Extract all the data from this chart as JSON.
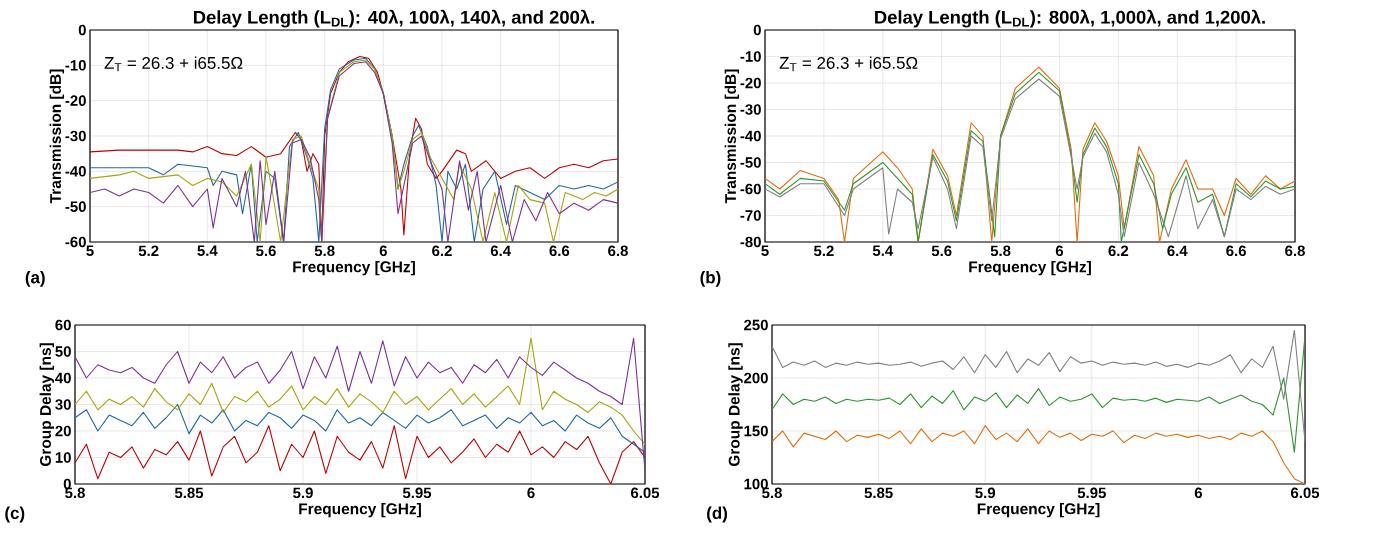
{
  "chart_data": [
    {
      "type": "line",
      "title": "Delay Length (L$_{DL}$): 40λ, 100λ, 140λ, and 200λ.",
      "xlabel": "Frequency [GHz]",
      "ylabel": "Transmission [dB]",
      "annotations": [
        "Z$_{T}$ = 26.3 + i65.5Ω",
        "(a)"
      ],
      "xlim": [
        5,
        6.8
      ],
      "xticks": [
        5,
        5.2,
        5.4,
        5.6,
        5.8,
        6,
        6.2,
        6.4,
        6.6,
        6.8
      ],
      "ylim": [
        -60,
        0
      ],
      "yticks": [
        -60,
        -50,
        -40,
        -30,
        -20,
        -10,
        0
      ],
      "grid": true,
      "series": [
        {
          "color": "#c00000",
          "x": [
            5.0,
            5.1,
            5.2,
            5.3,
            5.35,
            5.4,
            5.45,
            5.5,
            5.55,
            5.6,
            5.65,
            5.7,
            5.72,
            5.74,
            5.76,
            5.78,
            5.79,
            5.8,
            5.82,
            5.85,
            5.88,
            5.92,
            5.95,
            5.98,
            6.0,
            6.03,
            6.06,
            6.07,
            6.09,
            6.11,
            6.13,
            6.15,
            6.18,
            6.2,
            6.25,
            6.28,
            6.3,
            6.35,
            6.4,
            6.45,
            6.5,
            6.55,
            6.6,
            6.65,
            6.7,
            6.75,
            6.8
          ],
          "values": [
            -34.5,
            -34,
            -34,
            -34,
            -34.5,
            -33,
            -35,
            -35.5,
            -33,
            -36,
            -35,
            -29,
            -31,
            -40,
            -35,
            -38,
            -60,
            -30,
            -18,
            -12,
            -9,
            -7.5,
            -8,
            -12,
            -18,
            -30,
            -45,
            -58,
            -35,
            -25,
            -28,
            -38,
            -42,
            -40,
            -34,
            -35,
            -40,
            -37,
            -42,
            -40,
            -39,
            -42,
            -39,
            -38,
            -39,
            -37,
            -36.5
          ]
        },
        {
          "color": "#1f68a4",
          "x": [
            5.0,
            5.1,
            5.2,
            5.25,
            5.3,
            5.4,
            5.42,
            5.45,
            5.5,
            5.52,
            5.55,
            5.57,
            5.6,
            5.63,
            5.66,
            5.68,
            5.71,
            5.74,
            5.76,
            5.78,
            5.8,
            5.82,
            5.85,
            5.9,
            5.94,
            5.97,
            6.0,
            6.03,
            6.05,
            6.07,
            6.1,
            6.12,
            6.15,
            6.18,
            6.2,
            6.22,
            6.25,
            6.28,
            6.31,
            6.34,
            6.38,
            6.42,
            6.45,
            6.5,
            6.55,
            6.6,
            6.65,
            6.7,
            6.75,
            6.8
          ],
          "values": [
            -39,
            -39,
            -39,
            -41,
            -38,
            -39,
            -44,
            -40,
            -41,
            -52,
            -38,
            -60,
            -40,
            -42,
            -60,
            -33,
            -29,
            -36,
            -42,
            -60,
            -28,
            -17,
            -11,
            -8.5,
            -8,
            -11,
            -18,
            -30,
            -45,
            -38,
            -30,
            -27,
            -33,
            -44,
            -60,
            -40,
            -45,
            -38,
            -60,
            -45,
            -40,
            -55,
            -44,
            -46,
            -48,
            -44,
            -45,
            -44,
            -45,
            -43
          ]
        },
        {
          "color": "#a5a50a",
          "x": [
            5.0,
            5.1,
            5.15,
            5.2,
            5.3,
            5.35,
            5.4,
            5.45,
            5.5,
            5.55,
            5.58,
            5.6,
            5.62,
            5.65,
            5.69,
            5.72,
            5.75,
            5.78,
            5.79,
            5.81,
            5.85,
            5.9,
            5.94,
            5.97,
            6.0,
            6.03,
            6.05,
            6.07,
            6.1,
            6.13,
            6.16,
            6.2,
            6.24,
            6.26,
            6.3,
            6.34,
            6.38,
            6.42,
            6.46,
            6.5,
            6.55,
            6.58,
            6.62,
            6.68,
            6.72,
            6.76,
            6.8
          ],
          "values": [
            -42,
            -41,
            -40,
            -42,
            -41,
            -44,
            -42,
            -43,
            -47,
            -38,
            -60,
            -36,
            -45,
            -60,
            -31,
            -30,
            -38,
            -45,
            -60,
            -25,
            -12,
            -9,
            -8.5,
            -11,
            -18,
            -30,
            -45,
            -40,
            -31,
            -29,
            -36,
            -42,
            -48,
            -38,
            -45,
            -60,
            -46,
            -60,
            -44,
            -48,
            -49,
            -60,
            -46,
            -48,
            -46,
            -47,
            -45
          ]
        },
        {
          "color": "#7b3294",
          "x": [
            5.0,
            5.05,
            5.1,
            5.15,
            5.2,
            5.25,
            5.3,
            5.35,
            5.4,
            5.42,
            5.45,
            5.5,
            5.53,
            5.56,
            5.58,
            5.6,
            5.63,
            5.66,
            5.69,
            5.72,
            5.75,
            5.78,
            5.79,
            5.81,
            5.85,
            5.9,
            5.94,
            5.97,
            6.0,
            6.03,
            6.05,
            6.08,
            6.1,
            6.13,
            6.16,
            6.2,
            6.22,
            6.26,
            6.29,
            6.32,
            6.35,
            6.4,
            6.44,
            6.48,
            6.52,
            6.56,
            6.6,
            6.65,
            6.7,
            6.75,
            6.8
          ],
          "values": [
            -46,
            -45,
            -47,
            -45,
            -46,
            -49,
            -44,
            -50,
            -45,
            -56,
            -42,
            -50,
            -40,
            -60,
            -37,
            -55,
            -40,
            -60,
            -32,
            -31,
            -36,
            -48,
            -60,
            -25,
            -13,
            -9.5,
            -9,
            -12,
            -18,
            -32,
            -52,
            -40,
            -32,
            -30,
            -37,
            -45,
            -60,
            -37,
            -51,
            -40,
            -60,
            -44,
            -60,
            -48,
            -54,
            -46,
            -52,
            -49,
            -51,
            -48,
            -49
          ]
        }
      ]
    },
    {
      "type": "line",
      "title": "Delay Length (L$_{DL}$): 800λ, 1,000λ, and 1,200λ.",
      "xlabel": "Frequency [GHz]",
      "ylabel": "Transmission [dB]",
      "annotations": [
        "Z$_{T}$ = 26.3 + i65.5Ω",
        "(b)"
      ],
      "xlim": [
        5,
        6.8
      ],
      "xticks": [
        5,
        5.2,
        5.4,
        5.6,
        5.8,
        6,
        6.2,
        6.4,
        6.6,
        6.8
      ],
      "ylim": [
        -80,
        0
      ],
      "yticks": [
        -80,
        -70,
        -60,
        -50,
        -40,
        -30,
        -20,
        -10,
        0
      ],
      "grid": true,
      "series": [
        {
          "color": "#e36c0a",
          "x": [
            5.0,
            5.05,
            5.12,
            5.2,
            5.25,
            5.27,
            5.3,
            5.4,
            5.45,
            5.5,
            5.52,
            5.57,
            5.62,
            5.65,
            5.7,
            5.74,
            5.77,
            5.8,
            5.85,
            5.93,
            6.0,
            6.04,
            6.06,
            6.08,
            6.12,
            6.16,
            6.2,
            6.22,
            6.27,
            6.32,
            6.34,
            6.38,
            6.43,
            6.47,
            6.52,
            6.56,
            6.6,
            6.65,
            6.7,
            6.75,
            6.8
          ],
          "values": [
            -56,
            -60,
            -53,
            -56,
            -64,
            -80,
            -56,
            -46,
            -52,
            -60,
            -80,
            -45,
            -55,
            -70,
            -35,
            -40,
            -80,
            -40,
            -22,
            -14,
            -22,
            -45,
            -80,
            -45,
            -35,
            -42,
            -55,
            -75,
            -44,
            -55,
            -80,
            -60,
            -49,
            -60,
            -60,
            -70,
            -56,
            -62,
            -55,
            -60,
            -57
          ]
        },
        {
          "color": "#2e952e",
          "x": [
            5.0,
            5.05,
            5.12,
            5.2,
            5.27,
            5.3,
            5.4,
            5.45,
            5.5,
            5.52,
            5.57,
            5.62,
            5.65,
            5.7,
            5.74,
            5.78,
            5.8,
            5.85,
            5.93,
            6.0,
            6.04,
            6.06,
            6.08,
            6.12,
            6.16,
            6.2,
            6.21,
            6.27,
            6.32,
            6.35,
            6.38,
            6.43,
            6.47,
            6.52,
            6.56,
            6.6,
            6.65,
            6.7,
            6.75,
            6.8
          ],
          "values": [
            -58,
            -62,
            -56,
            -57,
            -68,
            -58,
            -50,
            -56,
            -62,
            -80,
            -47,
            -57,
            -72,
            -38,
            -42,
            -78,
            -40,
            -24,
            -16,
            -23,
            -47,
            -65,
            -47,
            -37,
            -44,
            -58,
            -80,
            -47,
            -58,
            -75,
            -62,
            -52,
            -65,
            -62,
            -78,
            -58,
            -63,
            -57,
            -60,
            -59
          ]
        },
        {
          "color": "#808080",
          "x": [
            5.0,
            5.05,
            5.12,
            5.2,
            5.27,
            5.3,
            5.4,
            5.42,
            5.45,
            5.5,
            5.52,
            5.57,
            5.62,
            5.65,
            5.7,
            5.74,
            5.77,
            5.8,
            5.85,
            5.93,
            6.0,
            6.04,
            6.06,
            6.08,
            6.12,
            6.16,
            6.2,
            6.22,
            6.27,
            6.32,
            6.37,
            6.43,
            6.47,
            6.52,
            6.56,
            6.6,
            6.65,
            6.7,
            6.75,
            6.8
          ],
          "values": [
            -60,
            -63,
            -58,
            -58,
            -70,
            -60,
            -52,
            -77,
            -60,
            -65,
            -75,
            -48,
            -60,
            -75,
            -40,
            -44,
            -72,
            -41,
            -26,
            -18.5,
            -25,
            -48,
            -60,
            -48,
            -39,
            -46,
            -62,
            -78,
            -50,
            -62,
            -78,
            -55,
            -75,
            -64,
            -78,
            -60,
            -64,
            -59,
            -62,
            -60
          ]
        }
      ]
    },
    {
      "type": "line",
      "xlabel": "Frequency [GHz]",
      "ylabel": "Group Delay [ns]",
      "annotations": [
        "(c)"
      ],
      "xlim": [
        5.8,
        6.05
      ],
      "xticks": [
        5.8,
        5.85,
        5.9,
        5.95,
        6,
        6.05
      ],
      "ylim": [
        0,
        60
      ],
      "yticks": [
        0,
        10,
        20,
        30,
        40,
        50,
        60
      ],
      "grid": true,
      "x": [
        5.8,
        5.805,
        5.81,
        5.815,
        5.82,
        5.825,
        5.83,
        5.835,
        5.84,
        5.845,
        5.85,
        5.855,
        5.86,
        5.865,
        5.87,
        5.875,
        5.88,
        5.885,
        5.89,
        5.895,
        5.9,
        5.905,
        5.91,
        5.915,
        5.92,
        5.925,
        5.93,
        5.935,
        5.94,
        5.945,
        5.95,
        5.955,
        5.96,
        5.965,
        5.97,
        5.975,
        5.98,
        5.985,
        5.99,
        5.995,
        6.0,
        6.005,
        6.01,
        6.015,
        6.02,
        6.025,
        6.03,
        6.035,
        6.04,
        6.045,
        6.05
      ],
      "series": [
        {
          "color": "#c00000",
          "values": [
            8,
            15,
            2,
            12,
            10,
            14,
            6,
            13,
            11,
            16,
            9,
            20,
            3,
            14,
            18,
            8,
            12,
            22,
            5,
            15,
            10,
            20,
            4,
            18,
            12,
            9,
            16,
            6,
            22,
            2,
            18,
            10,
            14,
            8,
            12,
            17,
            10,
            15,
            12,
            20,
            11,
            14,
            10,
            16,
            13,
            18,
            8,
            0,
            12,
            16,
            10
          ]
        },
        {
          "color": "#1f68a4",
          "values": [
            25,
            28,
            20,
            26,
            24,
            22,
            27,
            21,
            25,
            30,
            19,
            26,
            23,
            28,
            20,
            24,
            22,
            27,
            25,
            21,
            26,
            24,
            20,
            28,
            23,
            25,
            22,
            27,
            24,
            21,
            26,
            23,
            25,
            28,
            22,
            24,
            26,
            21,
            25,
            23,
            27,
            22,
            24,
            20,
            26,
            23,
            21,
            25,
            18,
            15,
            12
          ]
        },
        {
          "color": "#a5a50a",
          "values": [
            30,
            35,
            28,
            32,
            30,
            33,
            29,
            36,
            31,
            28,
            34,
            30,
            38,
            27,
            33,
            31,
            35,
            29,
            32,
            37,
            28,
            33,
            30,
            36,
            29,
            34,
            31,
            27,
            35,
            30,
            33,
            28,
            32,
            36,
            30,
            34,
            29,
            33,
            37,
            30,
            55,
            28,
            35,
            32,
            30,
            27,
            31,
            29,
            26,
            20,
            15
          ]
        },
        {
          "color": "#7b3294",
          "values": [
            48,
            40,
            45,
            43,
            42,
            44,
            40,
            38,
            45,
            50,
            38,
            46,
            42,
            48,
            40,
            44,
            46,
            38,
            43,
            50,
            36,
            48,
            40,
            52,
            35,
            50,
            38,
            54,
            37,
            48,
            40,
            46,
            42,
            44,
            38,
            45,
            42,
            47,
            40,
            48,
            44,
            41,
            46,
            43,
            40,
            38,
            35,
            33,
            30,
            55,
            5
          ]
        }
      ]
    },
    {
      "type": "line",
      "xlabel": "Frequency [GHz]",
      "ylabel": "Group Delay [ns]",
      "annotations": [
        "(d)"
      ],
      "xlim": [
        5.8,
        6.05
      ],
      "xticks": [
        5.8,
        5.85,
        5.9,
        5.95,
        6,
        6.05
      ],
      "ylim": [
        100,
        250
      ],
      "yticks": [
        100,
        150,
        200,
        250
      ],
      "grid": true,
      "x": [
        5.8,
        5.805,
        5.81,
        5.815,
        5.82,
        5.825,
        5.83,
        5.835,
        5.84,
        5.845,
        5.85,
        5.855,
        5.86,
        5.865,
        5.87,
        5.875,
        5.88,
        5.885,
        5.89,
        5.895,
        5.9,
        5.905,
        5.91,
        5.915,
        5.92,
        5.925,
        5.93,
        5.935,
        5.94,
        5.945,
        5.95,
        5.955,
        5.96,
        5.965,
        5.97,
        5.975,
        5.98,
        5.985,
        5.99,
        5.995,
        6.0,
        6.005,
        6.01,
        6.015,
        6.02,
        6.025,
        6.03,
        6.035,
        6.04,
        6.045,
        6.05
      ],
      "series": [
        {
          "color": "#e36c0a",
          "values": [
            140,
            150,
            135,
            148,
            145,
            142,
            150,
            140,
            146,
            144,
            147,
            143,
            150,
            138,
            152,
            140,
            148,
            145,
            150,
            138,
            155,
            142,
            148,
            140,
            152,
            138,
            150,
            144,
            148,
            141,
            147,
            145,
            150,
            139,
            146,
            143,
            148,
            145,
            147,
            144,
            146,
            143,
            145,
            142,
            148,
            145,
            150,
            140,
            120,
            105,
            100
          ]
        },
        {
          "color": "#2e952e",
          "values": [
            170,
            185,
            175,
            180,
            178,
            182,
            176,
            180,
            178,
            180,
            179,
            181,
            175,
            185,
            172,
            183,
            176,
            188,
            170,
            182,
            178,
            186,
            172,
            184,
            176,
            190,
            174,
            182,
            178,
            180,
            185,
            172,
            181,
            179,
            180,
            178,
            181,
            177,
            180,
            179,
            178,
            182,
            176,
            180,
            184,
            178,
            175,
            165,
            200,
            130,
            240
          ]
        },
        {
          "color": "#808080",
          "values": [
            230,
            210,
            215,
            212,
            216,
            210,
            214,
            212,
            215,
            213,
            214,
            212,
            213,
            215,
            211,
            214,
            216,
            208,
            220,
            205,
            222,
            210,
            225,
            205,
            218,
            212,
            224,
            206,
            220,
            214,
            216,
            212,
            215,
            213,
            214,
            212,
            215,
            211,
            213,
            210,
            214,
            212,
            216,
            222,
            205,
            218,
            210,
            230,
            180,
            245,
            140
          ]
        }
      ]
    }
  ]
}
